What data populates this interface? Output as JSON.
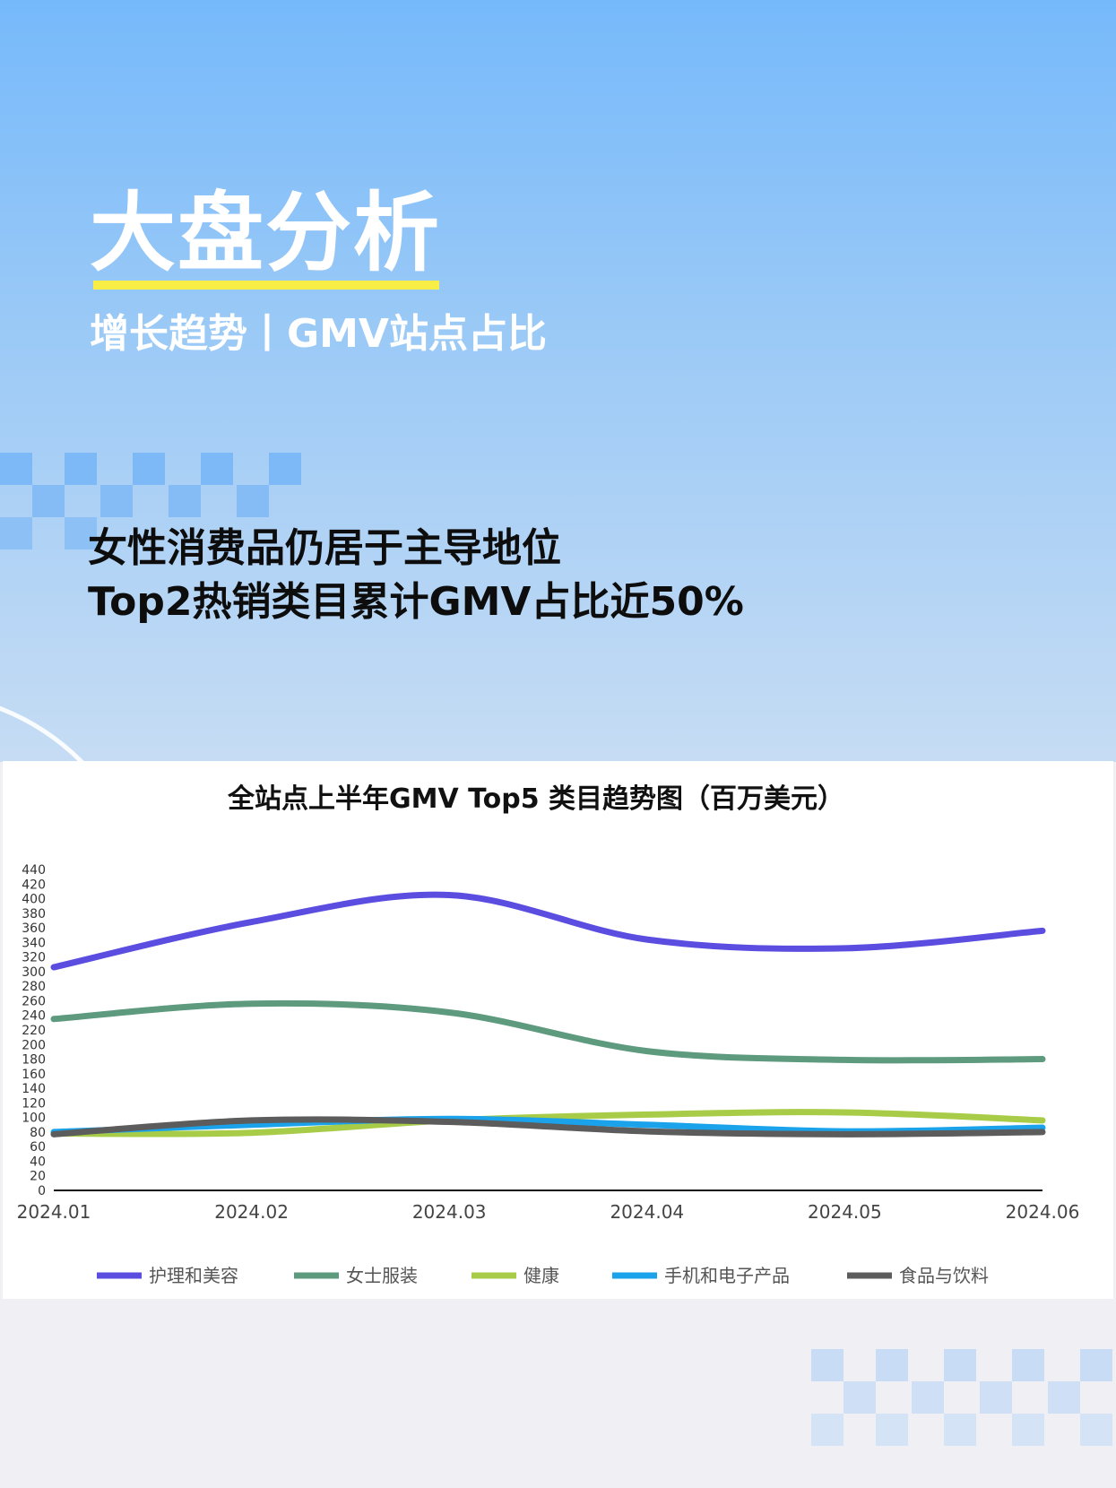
{
  "header": {
    "title": "大盘分析",
    "subtitle": "增长趋势丨GMV站点占比",
    "headline_line1": "女性消费品仍居于主导地位",
    "headline_line2": "Top2热销类目累计GMV占比近50%"
  },
  "colors": {
    "title_underline": "#f8ee46",
    "checker": "#7db8f7",
    "bottom_checker": "#c9dcf6"
  },
  "chart_data": {
    "type": "line",
    "title": "全站点上半年GMV Top5 类目趋势图（百万美元）",
    "xlabel": "",
    "ylabel": "",
    "categories": [
      "2024.01",
      "2024.02",
      "2024.03",
      "2024.04",
      "2024.05",
      "2024.06"
    ],
    "ylim": [
      0,
      440
    ],
    "yticks": [
      0,
      20,
      40,
      60,
      80,
      100,
      120,
      140,
      160,
      180,
      200,
      220,
      240,
      260,
      280,
      300,
      320,
      340,
      360,
      380,
      400,
      420,
      440
    ],
    "grid": false,
    "smooth": true,
    "legend_position": "bottom",
    "series": [
      {
        "name": "护理和美容",
        "color": "#5a4de0",
        "values": [
          306,
          368,
          405,
          344,
          332,
          356
        ]
      },
      {
        "name": "女士服装",
        "color": "#5d9a7e",
        "values": [
          235,
          256,
          244,
          191,
          179,
          180
        ]
      },
      {
        "name": "健康",
        "color": "#a8cc47",
        "values": [
          78,
          79,
          96,
          104,
          107,
          96
        ]
      },
      {
        "name": "手机和电子产品",
        "color": "#1aa3ea",
        "values": [
          80,
          90,
          98,
          90,
          81,
          86
        ]
      },
      {
        "name": "食品与饮料",
        "color": "#5c5c5c",
        "values": [
          77,
          96,
          94,
          81,
          77,
          80
        ]
      }
    ]
  }
}
